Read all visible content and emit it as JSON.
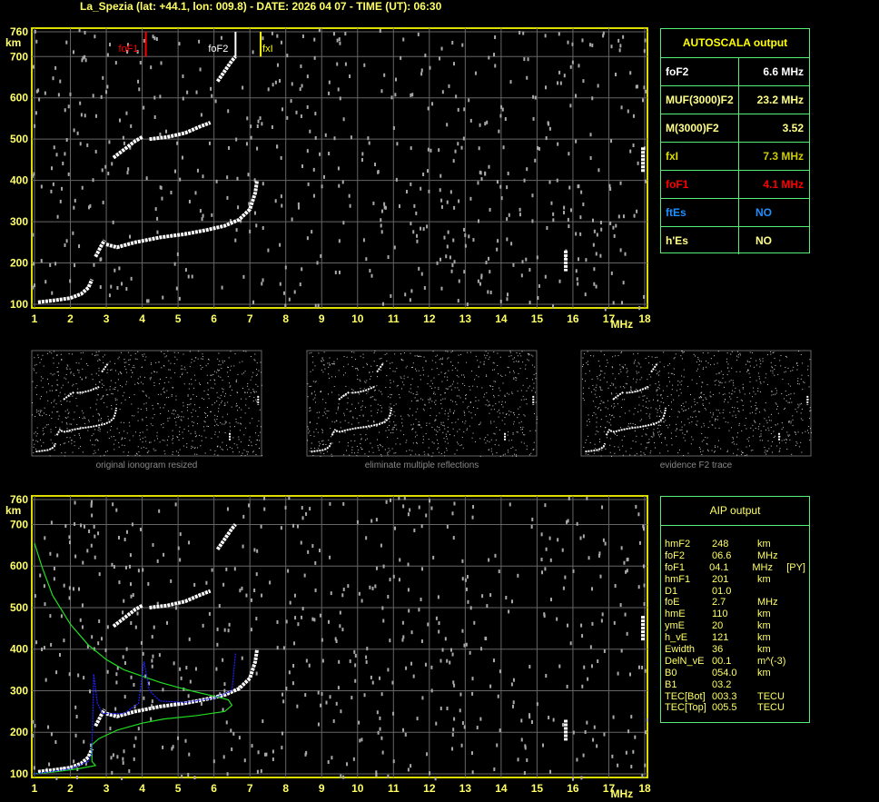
{
  "header": {
    "title": "La_Spezia (lat: +44.1, lon: 009.8) - DATE: 2026 04 07 - TIME (UT): 06:30"
  },
  "autoscala": {
    "title": "AUTOSCALA output",
    "rows": [
      {
        "key": "foF2",
        "value": "6.6 MHz",
        "color": "#ffffff",
        "vcolor": "#ffffff"
      },
      {
        "key": "MUF(3000)F2",
        "value": "23.2 MHz",
        "color": "#ffff88",
        "vcolor": "#ffff88"
      },
      {
        "key": "M(3000)F2",
        "value": "3.52",
        "color": "#ffff88",
        "vcolor": "#ffff88"
      },
      {
        "key": "fxI",
        "value": "7.3 MHz",
        "color": "#dddd00",
        "vcolor": "#cccc00"
      },
      {
        "key": "foF1",
        "value": "4.1 MHz",
        "color": "#ff0000",
        "vcolor": "#ff0000"
      },
      {
        "key": "ftEs",
        "value": "NO",
        "color": "#1e90ff",
        "vcolor": "#1e90ff"
      },
      {
        "key": "h'Es",
        "value": "NO",
        "color": "#ffff88",
        "vcolor": "#ffff88"
      }
    ]
  },
  "aip": {
    "title": "AIP output",
    "rows": [
      [
        "hmF2",
        "248",
        "km",
        ""
      ],
      [
        "foF2",
        "06.6",
        "MHz",
        ""
      ],
      [
        "foF1",
        "04.1",
        "MHz",
        "[PY]"
      ],
      [
        "hmF1",
        "201",
        "km",
        ""
      ],
      [
        "D1",
        "01.0",
        "",
        ""
      ],
      [
        "foE",
        "2.7",
        "MHz",
        ""
      ],
      [
        "hmE",
        "110",
        "km",
        ""
      ],
      [
        "ymE",
        "20",
        "km",
        ""
      ],
      [
        "h_vE",
        "121",
        "km",
        ""
      ],
      [
        "Ewidth",
        "36",
        "km",
        ""
      ],
      [
        "DelN_vE",
        "00.1",
        "m^(-3)",
        ""
      ],
      [
        "B0",
        "054.0",
        "km",
        ""
      ],
      [
        "B1",
        "03.2",
        "",
        ""
      ],
      [
        "TEC[Bot]",
        "003.3",
        "TECU",
        ""
      ],
      [
        "TEC[Top]",
        "005.5",
        "TECU",
        ""
      ]
    ]
  },
  "thumbnails": [
    "original ionogram resized",
    "eliminate multiple reflections",
    "evidence F2 trace"
  ],
  "chart_data": [
    {
      "type": "scatter",
      "title": "",
      "xlabel": "MHz",
      "ylabel": "km",
      "xlim": [
        1,
        18
      ],
      "ylim": [
        100,
        760
      ],
      "xticks": [
        1,
        2,
        3,
        4,
        5,
        6,
        7,
        8,
        9,
        10,
        11,
        12,
        13,
        14,
        15,
        16,
        17,
        18
      ],
      "yticks": [
        100,
        200,
        300,
        400,
        500,
        600,
        700,
        760
      ],
      "grid": true,
      "markers": [
        {
          "name": "foF1",
          "x": 4.1,
          "color": "#ff0000"
        },
        {
          "name": "foF2",
          "x": 6.6,
          "color": "#ffffff"
        },
        {
          "name": "fxI",
          "x": 7.3,
          "color": "#ffff00"
        }
      ],
      "traces": [
        [
          [
            1.1,
            105
          ],
          [
            1.6,
            110
          ],
          [
            2.0,
            115
          ],
          [
            2.3,
            125
          ],
          [
            2.5,
            140
          ],
          [
            2.6,
            160
          ]
        ],
        [
          [
            3.0,
            245
          ],
          [
            3.3,
            238
          ],
          [
            3.8,
            250
          ],
          [
            4.5,
            262
          ],
          [
            5.2,
            270
          ],
          [
            5.8,
            280
          ],
          [
            6.3,
            290
          ],
          [
            6.7,
            305
          ],
          [
            7.0,
            330
          ],
          [
            7.15,
            370
          ],
          [
            7.2,
            400
          ]
        ],
        [
          [
            2.7,
            215
          ],
          [
            2.85,
            240
          ],
          [
            2.95,
            255
          ]
        ],
        [
          [
            3.2,
            455
          ],
          [
            3.5,
            475
          ],
          [
            3.8,
            495
          ],
          [
            4.0,
            505
          ]
        ],
        [
          [
            4.2,
            500
          ],
          [
            4.7,
            505
          ],
          [
            5.2,
            515
          ],
          [
            5.6,
            530
          ],
          [
            5.9,
            540
          ]
        ],
        [
          [
            6.1,
            640
          ],
          [
            6.3,
            665
          ],
          [
            6.5,
            690
          ],
          [
            6.6,
            700
          ]
        ],
        [
          [
            15.8,
            230
          ],
          [
            15.8,
            180
          ]
        ],
        [
          [
            17.95,
            480
          ],
          [
            17.95,
            420
          ]
        ]
      ]
    },
    {
      "type": "line",
      "title": "",
      "xlabel": "MHz",
      "ylabel": "km",
      "xlim": [
        1,
        18
      ],
      "ylim": [
        100,
        760
      ],
      "series": [
        {
          "color": "#22dd22",
          "points": [
            [
              1.0,
              655
            ],
            [
              1.2,
              600
            ],
            [
              1.5,
              530
            ],
            [
              2.0,
              460
            ],
            [
              2.5,
              410
            ],
            [
              3.0,
              375
            ],
            [
              3.5,
              350
            ],
            [
              4.0,
              335
            ],
            [
              4.5,
              320
            ],
            [
              5.0,
              308
            ],
            [
              5.5,
              297
            ],
            [
              6.0,
              287
            ],
            [
              6.4,
              278
            ],
            [
              6.5,
              265
            ],
            [
              6.3,
              250
            ],
            [
              5.5,
              240
            ],
            [
              4.6,
              232
            ],
            [
              4.0,
              222
            ],
            [
              3.3,
              205
            ],
            [
              2.8,
              185
            ],
            [
              2.6,
              170
            ],
            [
              2.6,
              130
            ],
            [
              2.7,
              120
            ],
            [
              2.2,
              112
            ],
            [
              1.6,
              105
            ],
            [
              1.0,
              100
            ]
          ]
        },
        {
          "color": "#2222ff",
          "points": [
            [
              1.0,
              100
            ],
            [
              2.0,
              112
            ],
            [
              2.5,
              130
            ],
            [
              2.6,
              150
            ],
            [
              2.65,
              340
            ],
            [
              2.75,
              270
            ],
            [
              2.9,
              245
            ],
            [
              3.5,
              245
            ],
            [
              3.9,
              270
            ],
            [
              4.05,
              370
            ],
            [
              4.2,
              300
            ],
            [
              4.5,
              275
            ],
            [
              5.2,
              272
            ],
            [
              6.0,
              282
            ],
            [
              6.5,
              300
            ],
            [
              6.6,
              390
            ]
          ]
        }
      ]
    }
  ]
}
